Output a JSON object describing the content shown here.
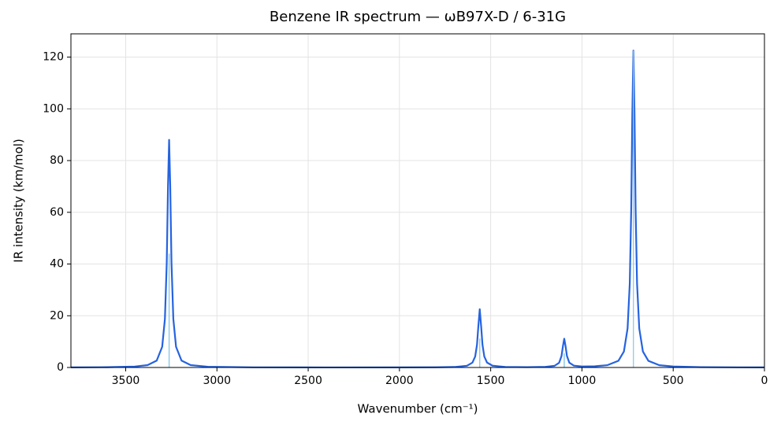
{
  "chart_data": {
    "type": "line",
    "title": "Benzene IR spectrum — ωB97X-D / 6-31G",
    "xlabel": "Wavenumber (cm⁻¹)",
    "ylabel": "IR intensity (km/mol)",
    "xlim": [
      3800,
      0
    ],
    "ylim": [
      0,
      129
    ],
    "xticks": [
      3500,
      3000,
      2500,
      2000,
      1500,
      1000,
      500,
      0
    ],
    "yticks": [
      0,
      20,
      40,
      60,
      80,
      100,
      120
    ],
    "grid": true,
    "series": [
      {
        "color": "#2563e0",
        "x": [
          3800,
          3600,
          3450,
          3380,
          3330,
          3300,
          3285,
          3275,
          3268,
          3262,
          3256,
          3249,
          3239,
          3224,
          3194,
          3144,
          3050,
          2800,
          2400,
          2000,
          1800,
          1700,
          1630,
          1600,
          1585,
          1575,
          1568,
          1560,
          1552,
          1545,
          1535,
          1520,
          1490,
          1420,
          1300,
          1200,
          1150,
          1125,
          1112,
          1104,
          1097,
          1090,
          1082,
          1069,
          1044,
          1000,
          930,
          860,
          800,
          770,
          750,
          738,
          730,
          724,
          718,
          712,
          706,
          698,
          686,
          666,
          636,
          576,
          500,
          350,
          150,
          0
        ],
        "values": [
          0.05,
          0.11,
          0.36,
          0.91,
          2.66,
          7.98,
          18.8,
          40.5,
          70.4,
          88,
          70.4,
          40.5,
          18.8,
          7.98,
          2.66,
          0.91,
          0.28,
          0.06,
          0.02,
          0.04,
          0.07,
          0.18,
          0.66,
          1.88,
          4.24,
          8.8,
          15.6,
          22.53,
          15.6,
          8.8,
          4.24,
          1.9,
          0.68,
          0.21,
          0.14,
          0.25,
          0.65,
          1.81,
          4.4,
          8.3,
          11.12,
          8.3,
          4.4,
          1.84,
          0.71,
          0.39,
          0.45,
          0.9,
          2.59,
          6.19,
          15.1,
          32.4,
          61.25,
          98,
          122.5,
          98,
          61.25,
          32.4,
          15.1,
          6.19,
          2.57,
          0.87,
          0.37,
          0.13,
          0.055,
          0.034
        ]
      }
    ],
    "sticks": {
      "color": "#8ecae6",
      "x": [
        3262,
        3262,
        1560,
        1560,
        1097,
        1097,
        718
      ],
      "values": [
        44,
        44,
        11.2,
        11.2,
        5.5,
        5.5,
        122.5
      ]
    }
  }
}
